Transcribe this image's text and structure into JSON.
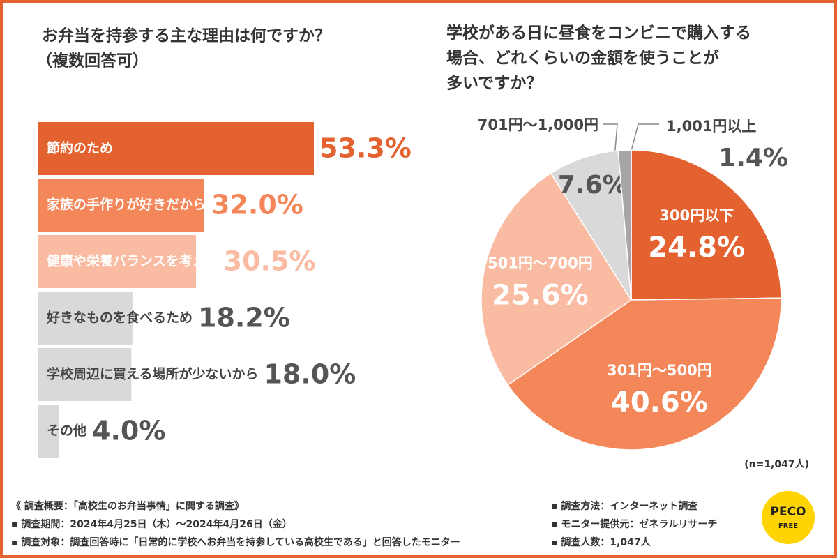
{
  "chart_data": [
    {
      "type": "bar",
      "title": "お弁当を持参する主な理由は何ですか？",
      "subtitle": "（複数回答可）",
      "categories": [
        "節約のため",
        "家族の手作りが好きだから",
        "健康や栄養バランスを考えて",
        "好きなものを食べるため",
        "学校周辺に買える場所が少ないから",
        "その他"
      ],
      "values": [
        53.3,
        32.0,
        30.5,
        18.2,
        18.0,
        4.0
      ],
      "value_labels": [
        "53.3%",
        "32.0%",
        "30.5%",
        "18.2%",
        "18.0%",
        "4.0%"
      ],
      "colors": [
        "#e4622f",
        "#f4875a",
        "#f9bba2",
        "#d9d9d9",
        "#d9d9d9",
        "#d9d9d9"
      ],
      "value_colors": [
        "#e4622f",
        "#f4875a",
        "#f9bba2",
        "#555555",
        "#555555",
        "#555555"
      ]
    },
    {
      "type": "pie",
      "title": [
        "学校がある日に昼食をコンビニで購入する",
        "場合、どれくらいの金額を使うことが",
        "多いですか？"
      ],
      "categories": [
        "300円以下",
        "301円〜500円",
        "501円〜700円",
        "701円〜1,000円",
        "1,001円以上"
      ],
      "values": [
        24.8,
        40.6,
        25.6,
        7.6,
        1.4
      ],
      "value_labels": [
        "24.8%",
        "40.6%",
        "25.6%",
        "7.6%",
        "1.4%"
      ],
      "colors": [
        "#e4622f",
        "#f4875a",
        "#f9bba2",
        "#d9d9d9",
        "#a6a6a6"
      ],
      "note": "(n=1,047人)"
    }
  ],
  "footer": {
    "left": [
      "《 調査概要：「高校生のお弁当事情」に関する調査》",
      "▪ 調査期間：2024年4月25日（木）〜2024年4月26日（金）",
      "▪ 調査対象：調査回答時に「日常的に学校へお弁当を持参している高校生である」と回答したモニター"
    ],
    "right": [
      "▪ 調査方法：インターネット調査",
      "▪ モニター提供元：ゼネラルリサーチ",
      "▪ 調査人数：1,047人"
    ],
    "logo": [
      "PECO",
      "FREE"
    ]
  }
}
